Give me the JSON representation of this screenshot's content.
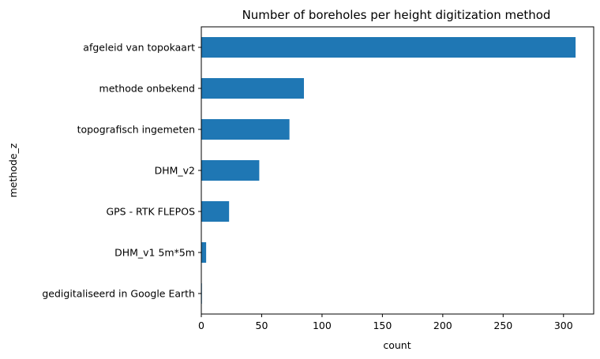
{
  "chart_data": {
    "type": "bar",
    "orientation": "horizontal",
    "title": "Number of boreholes per height digitization method",
    "xlabel": "count",
    "ylabel": "methode_z",
    "categories": [
      "afgeleid van topokaart",
      "methode onbekend",
      "topografisch ingemeten",
      "DHM_v2",
      "GPS - RTK FLEPOS",
      "DHM_v1 5m*5m",
      "gedigitaliseerd in Google Earth"
    ],
    "values": [
      310,
      85,
      73,
      48,
      23,
      4,
      0.5
    ],
    "xlim": [
      0,
      325
    ],
    "xticks": [
      0,
      50,
      100,
      150,
      200,
      250,
      300
    ],
    "grid": false,
    "legend": "none",
    "bar_color": "#1f77b4"
  }
}
